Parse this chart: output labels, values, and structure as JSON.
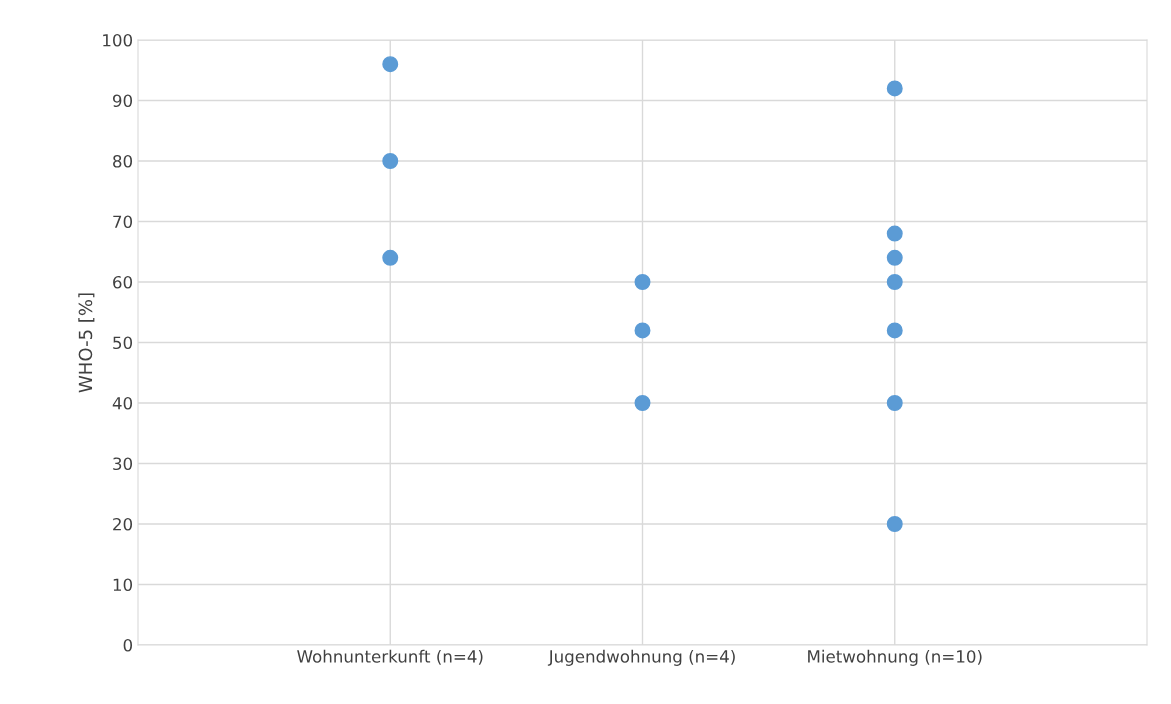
{
  "chart_data": {
    "type": "scatter",
    "ylabel": "WHO-5 [%]",
    "categories": [
      "Wohnunterkunft (n=4)",
      "Jugendwohnung (n=4)",
      "Mietwohnung (n=10)"
    ],
    "series": [
      {
        "color": "#5b9bd5",
        "x": [
          "Wohnunterkunft (n=4)",
          "Wohnunterkunft (n=4)",
          "Wohnunterkunft (n=4)",
          "Jugendwohnung (n=4)",
          "Jugendwohnung (n=4)",
          "Jugendwohnung (n=4)",
          "Mietwohnung (n=10)",
          "Mietwohnung (n=10)",
          "Mietwohnung (n=10)",
          "Mietwohnung (n=10)",
          "Mietwohnung (n=10)",
          "Mietwohnung (n=10)",
          "Mietwohnung (n=10)"
        ],
        "values": [
          96,
          80,
          64,
          60,
          52,
          40,
          92,
          68,
          64,
          60,
          52,
          40,
          20
        ]
      }
    ],
    "ylim": [
      0,
      100
    ],
    "yticks": [
      0,
      10,
      20,
      30,
      40,
      50,
      60,
      70,
      80,
      90,
      100
    ],
    "grid": true,
    "marker": "circle",
    "legend": false
  }
}
